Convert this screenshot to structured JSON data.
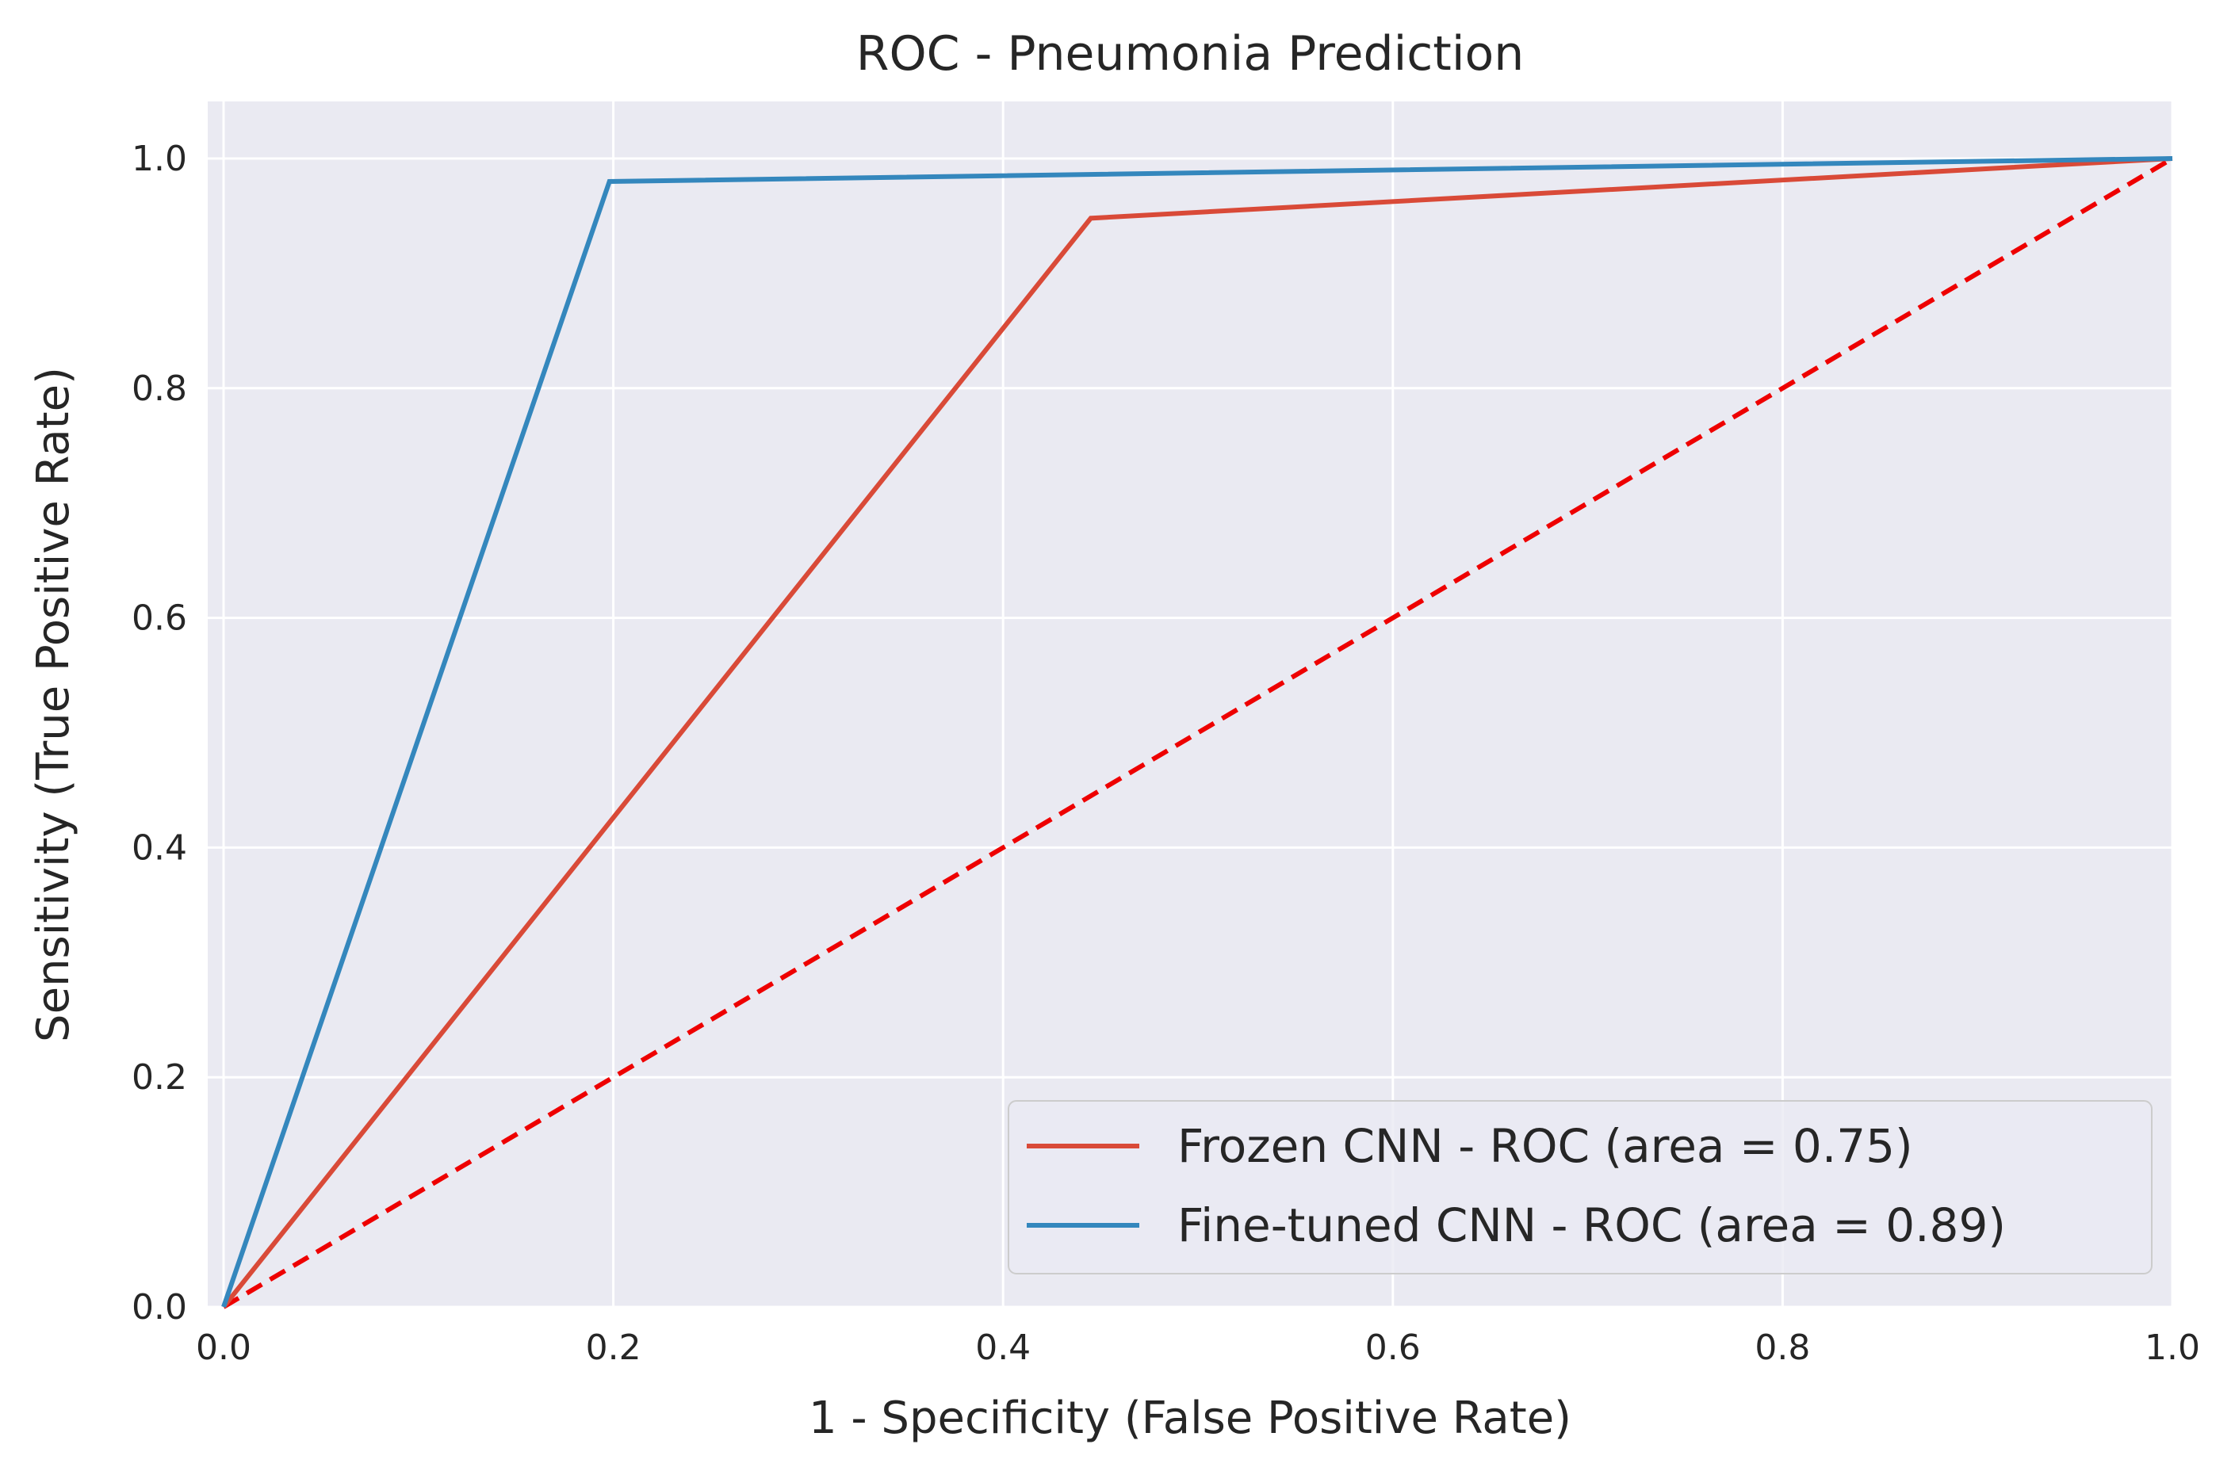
{
  "chart_data": {
    "type": "line",
    "title": "ROC - Pneumonia Prediction",
    "xlabel": "1 - Specificity (False Positive Rate)",
    "ylabel": "Sensitivity (True Positive Rate)",
    "xlim": [
      0.0,
      1.0
    ],
    "ylim": [
      0.0,
      1.05
    ],
    "xticks": [
      0.0,
      0.2,
      0.4,
      0.6,
      0.8,
      1.0
    ],
    "yticks": [
      0.0,
      0.2,
      0.4,
      0.6,
      0.8,
      1.0
    ],
    "xtick_labels": [
      "0.0",
      "0.2",
      "0.4",
      "0.6",
      "0.8",
      "1.0"
    ],
    "ytick_labels": [
      "0.0",
      "0.2",
      "0.4",
      "0.6",
      "0.8",
      "1.0"
    ],
    "grid": true,
    "legend_position": "bottom-right",
    "series": [
      {
        "name": "Frozen CNN - ROC (area = 0.75)",
        "color": "#d94a38",
        "style": "solid",
        "x": [
          0.0,
          0.445,
          1.0
        ],
        "y": [
          0.0,
          0.948,
          1.0
        ]
      },
      {
        "name": "Fine-tuned CNN - ROC (area = 0.89)",
        "color": "#3487bd",
        "style": "solid",
        "x": [
          0.0,
          0.198,
          1.0
        ],
        "y": [
          0.0,
          0.98,
          1.0
        ]
      }
    ],
    "reference_line": {
      "color": "#ee0000",
      "style": "dashed",
      "x": [
        0.0,
        1.0
      ],
      "y": [
        0.0,
        1.0
      ]
    }
  },
  "colors": {
    "plot_background": "#eaeaf2",
    "grid": "#ffffff",
    "text": "#262626"
  }
}
